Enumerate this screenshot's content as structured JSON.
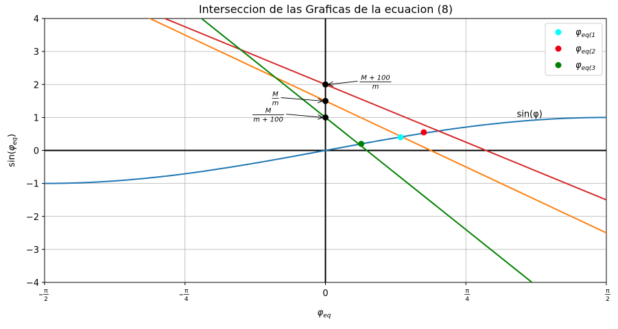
{
  "chart_data": {
    "type": "line",
    "title": "Interseccion de las Graficas de la ecuacion (8)",
    "xlabel": "φ_eq",
    "ylabel": "sin(φ_eq)",
    "xlim": [
      -1.5708,
      1.5708
    ],
    "ylim": [
      -4,
      4
    ],
    "grid": true,
    "x_ticks": [
      {
        "value": -1.5708,
        "label": "−π/2",
        "num": "π",
        "den": "2",
        "neg": true
      },
      {
        "value": -0.7854,
        "label": "−π/4",
        "num": "π",
        "den": "4",
        "neg": true
      },
      {
        "value": 0,
        "label": "0"
      },
      {
        "value": 0.7854,
        "label": "π/4",
        "num": "π",
        "den": "4",
        "neg": false
      },
      {
        "value": 1.5708,
        "label": "π/2",
        "num": "π",
        "den": "2",
        "neg": false
      }
    ],
    "y_ticks": [
      {
        "value": -4,
        "label": "−4"
      },
      {
        "value": -3,
        "label": "−3"
      },
      {
        "value": -2,
        "label": "−2"
      },
      {
        "value": -1,
        "label": "−1"
      },
      {
        "value": 0,
        "label": "0"
      },
      {
        "value": 1,
        "label": "1"
      },
      {
        "value": 2,
        "label": "2"
      },
      {
        "value": 3,
        "label": "3"
      },
      {
        "value": 4,
        "label": "4"
      }
    ],
    "curve": {
      "label": "sin(φ)",
      "color": "#1f77b4",
      "function": "sin",
      "label_at": [
        1.07,
        1.1
      ]
    },
    "lines": [
      {
        "name": "M+100/m",
        "color": "#d62728",
        "slope": -2.227,
        "intercept": 2.0
      },
      {
        "name": "M/m",
        "color": "#ff7f0e",
        "slope": -2.546,
        "intercept": 1.5
      },
      {
        "name": "M/(m+100)",
        "color": "#008000",
        "slope": -4.329,
        "intercept": 1.0
      }
    ],
    "intercept_points": [
      {
        "x": 0,
        "y": 2.0
      },
      {
        "x": 0,
        "y": 1.5
      },
      {
        "x": 0,
        "y": 1.0
      }
    ],
    "annotations": [
      {
        "id": "ann1",
        "num": "M + 100",
        "den": "m",
        "text_at": [
          0.28,
          2.1
        ],
        "target": [
          0,
          2.0
        ]
      },
      {
        "id": "ann2",
        "num": "M",
        "den": "m",
        "text_at": [
          -0.28,
          1.6
        ],
        "target": [
          0,
          1.5
        ]
      },
      {
        "id": "ann3",
        "num": "M",
        "den": "m + 100",
        "text_at": [
          -0.32,
          1.1
        ],
        "target": [
          0,
          1.0
        ]
      }
    ],
    "intersections": [
      {
        "name": "φ_eq(1",
        "sub": "eq(1",
        "x": 0.42,
        "y": 0.4,
        "color": "#00ffff"
      },
      {
        "name": "φ_eq(2",
        "sub": "eq(2",
        "x": 0.55,
        "y": 0.55,
        "color": "#ee0011"
      },
      {
        "name": "φ_eq(3",
        "sub": "eq(3",
        "x": 0.2,
        "y": 0.2,
        "color": "#008000"
      }
    ],
    "legend_position": "top-right"
  }
}
